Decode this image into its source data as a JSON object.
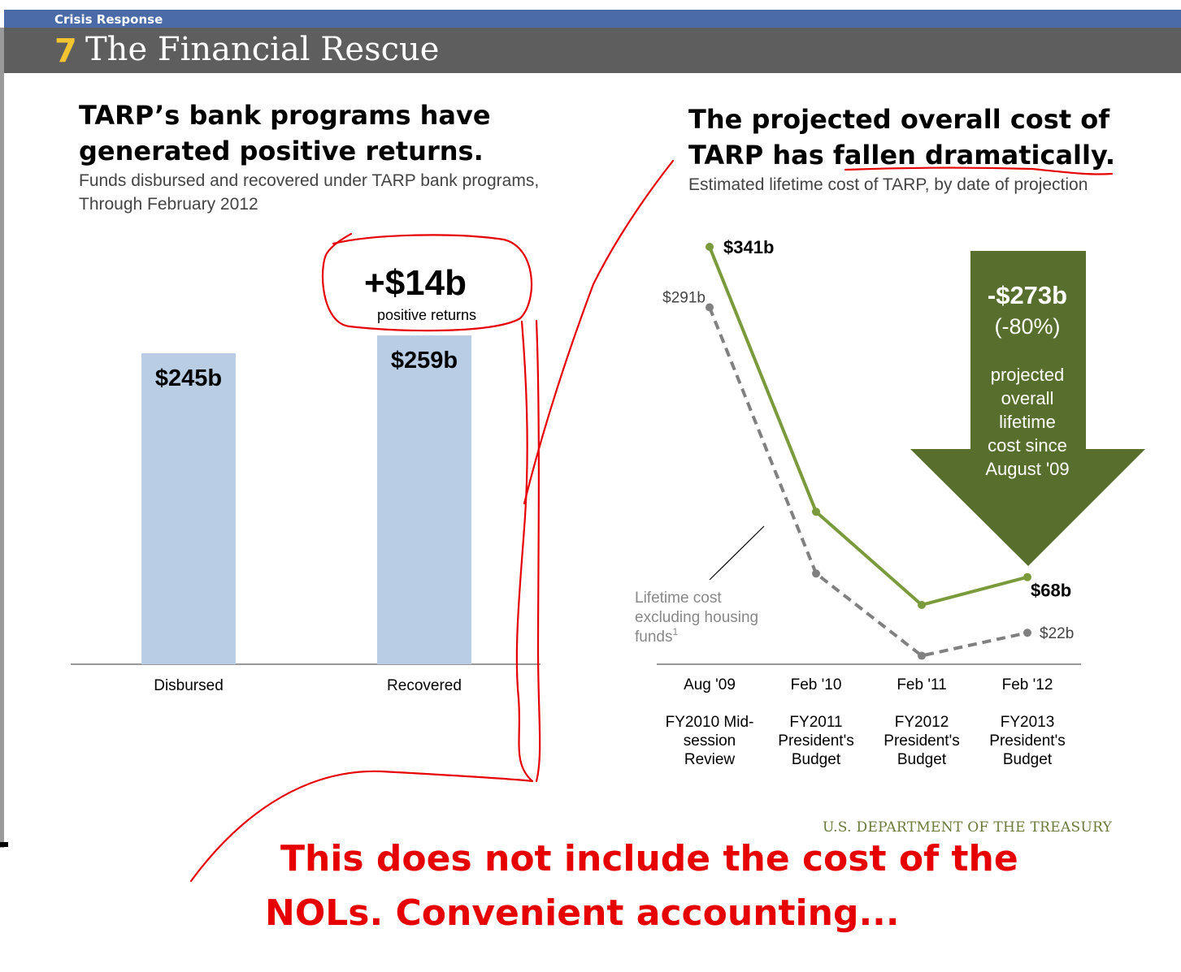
{
  "header": {
    "section": "Crisis Response",
    "number": "7",
    "title": "The Financial Rescue"
  },
  "left_panel": {
    "headline_line1": "TARP’s bank programs have",
    "headline_line2": "generated positive returns.",
    "subtitle_line1": "Funds disbursed and recovered under TARP bank programs,",
    "subtitle_line2": "Through February 2012"
  },
  "right_panel": {
    "headline_line1": "The projected overall cost of",
    "headline_line2": "TARP has fallen dramatically.",
    "subtitle": "Estimated lifetime cost of TARP, by date of projection"
  },
  "chart_data": [
    {
      "type": "bar",
      "categories": [
        "Disbursed",
        "Recovered"
      ],
      "values": [
        245,
        259
      ],
      "value_labels": [
        "$245b",
        "$259b"
      ],
      "ylim": [
        0,
        300
      ],
      "annotation": {
        "value": "+$14b",
        "text": "positive returns"
      },
      "colors": {
        "bar": "#b9cde5"
      }
    },
    {
      "type": "line",
      "categories": [
        "Aug '09",
        "Feb '10",
        "Feb '11",
        "Feb '12"
      ],
      "category_sublabels": [
        [
          "FY2010 Mid-",
          "session",
          "Review"
        ],
        [
          "FY2011",
          "President's",
          "Budget"
        ],
        [
          "FY2012",
          "President's",
          "Budget"
        ],
        [
          "FY2013",
          "President's",
          "Budget"
        ]
      ],
      "series": [
        {
          "values": [
            341,
            122,
            45,
            68
          ],
          "point_labels": [
            "$341b",
            "",
            "",
            "$68b"
          ],
          "style": "solid",
          "color": "#7a9a3c"
        },
        {
          "name": "Lifetime cost excluding housing funds¹",
          "values": [
            291,
            71,
            3,
            22
          ],
          "point_labels": [
            "$291b",
            "",
            "",
            "$22b"
          ],
          "style": "dashed",
          "color": "#808080"
        }
      ],
      "ylim": [
        0,
        350
      ],
      "callout": {
        "value": "-$273b",
        "percent": "(-80%)",
        "text": [
          "projected",
          "overall",
          "lifetime",
          "cost since",
          "August '09"
        ],
        "color": "#586e2c"
      }
    }
  ],
  "footer": {
    "source": "U.S. DEPARTMENT OF THE TREASURY"
  },
  "handwritten_note": {
    "line1": "This does not include the cost of the",
    "line2": "NOLs. Convenient accounting..."
  }
}
